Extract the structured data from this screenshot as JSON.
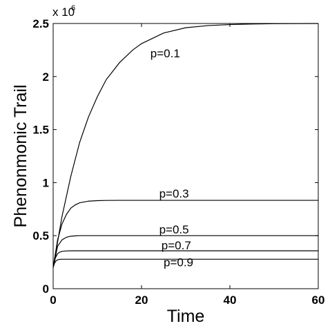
{
  "chart_data": {
    "type": "line",
    "xlabel": "Time",
    "ylabel": "Phenonmonic Trail",
    "xlim": [
      0,
      60
    ],
    "ylim": [
      0,
      2.5
    ],
    "y_multiplier": "x 10",
    "y_multiplier_exponent": "6",
    "x_ticks": [
      "0",
      "20",
      "40",
      "60"
    ],
    "y_ticks": [
      "0",
      "0.5",
      "1",
      "1.5",
      "2",
      "2.5"
    ],
    "grid": false,
    "series": [
      {
        "name": "p=0.1",
        "x": [
          0,
          2,
          4,
          6,
          8,
          10,
          12,
          15,
          18,
          20,
          25,
          30,
          35,
          40,
          45,
          50,
          55,
          60
        ],
        "y": [
          0.2,
          0.68,
          1.06,
          1.38,
          1.62,
          1.81,
          1.97,
          2.13,
          2.25,
          2.31,
          2.41,
          2.46,
          2.48,
          2.49,
          2.495,
          2.498,
          2.499,
          2.5
        ]
      },
      {
        "name": "p=0.3",
        "x": [
          0,
          1,
          2,
          3,
          4,
          5,
          6,
          8,
          10,
          12,
          15,
          20,
          30,
          40,
          50,
          60
        ],
        "y": [
          0.2,
          0.46,
          0.61,
          0.7,
          0.76,
          0.79,
          0.81,
          0.825,
          0.83,
          0.832,
          0.833,
          0.833,
          0.833,
          0.833,
          0.833,
          0.833
        ]
      },
      {
        "name": "p=0.5",
        "x": [
          0,
          1,
          2,
          3,
          4,
          5,
          6,
          8,
          10,
          20,
          30,
          40,
          50,
          60
        ],
        "y": [
          0.2,
          0.4,
          0.46,
          0.485,
          0.495,
          0.498,
          0.5,
          0.5,
          0.5,
          0.5,
          0.5,
          0.5,
          0.5,
          0.5
        ]
      },
      {
        "name": "p=0.7",
        "x": [
          0,
          0.5,
          1,
          1.5,
          2,
          3,
          4,
          6,
          10,
          20,
          30,
          40,
          50,
          60
        ],
        "y": [
          0.2,
          0.29,
          0.33,
          0.345,
          0.352,
          0.356,
          0.357,
          0.357,
          0.357,
          0.357,
          0.357,
          0.357,
          0.357,
          0.357
        ]
      },
      {
        "name": "p=0.9",
        "x": [
          0,
          0.3,
          0.6,
          1,
          1.5,
          2,
          3,
          5,
          10,
          20,
          30,
          40,
          50,
          60
        ],
        "y": [
          0.2,
          0.24,
          0.26,
          0.272,
          0.277,
          0.278,
          0.278,
          0.278,
          0.278,
          0.278,
          0.278,
          0.278,
          0.278,
          0.278
        ]
      }
    ]
  }
}
